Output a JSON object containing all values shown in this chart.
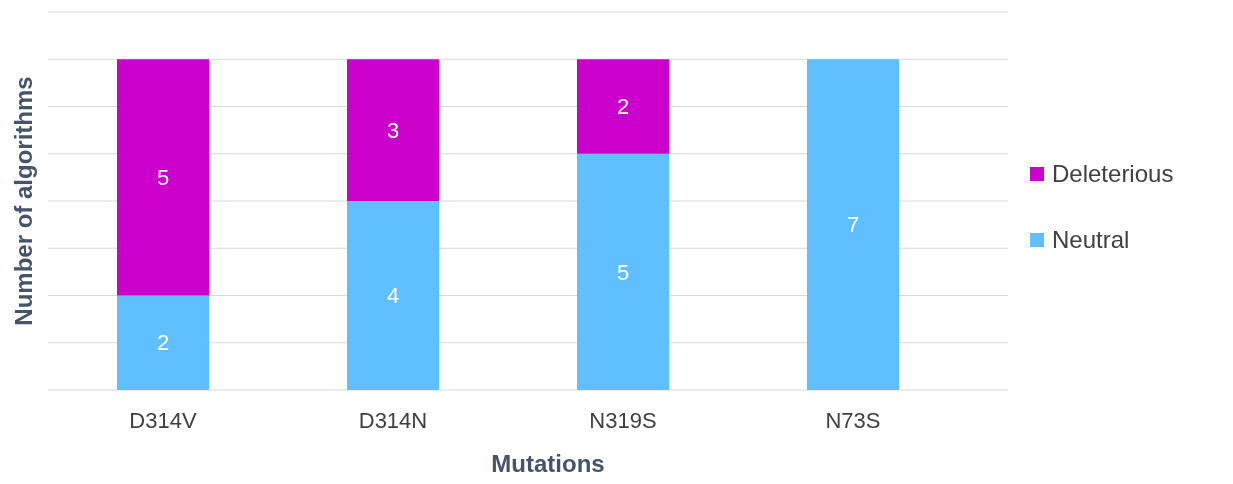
{
  "chart_data": {
    "type": "bar",
    "stacked": true,
    "xlabel": "Mutations",
    "ylabel": "Number of algorithms",
    "categories": [
      "D314V",
      "D314N",
      "N319S",
      "N73S"
    ],
    "series": [
      {
        "name": "Neutral",
        "color": "#5fbfff",
        "values": [
          2,
          4,
          5,
          7
        ]
      },
      {
        "name": "Deleterious",
        "color": "#cc00cc",
        "values": [
          5,
          3,
          2,
          null
        ]
      }
    ],
    "ylim": [
      0,
      8
    ],
    "yticks": [
      {
        "value": 0,
        "label": null
      },
      {
        "value": 1,
        "label": null
      },
      {
        "value": 2,
        "label": null
      },
      {
        "value": 3,
        "label": null
      },
      {
        "value": 4,
        "label": null
      },
      {
        "value": 5,
        "label": null
      },
      {
        "value": 6,
        "label": null
      },
      {
        "value": 7,
        "label": null
      },
      {
        "value": 8,
        "label": null
      }
    ],
    "tick_labels": "x",
    "grid": "y",
    "legend": "right",
    "data_labels": true
  }
}
